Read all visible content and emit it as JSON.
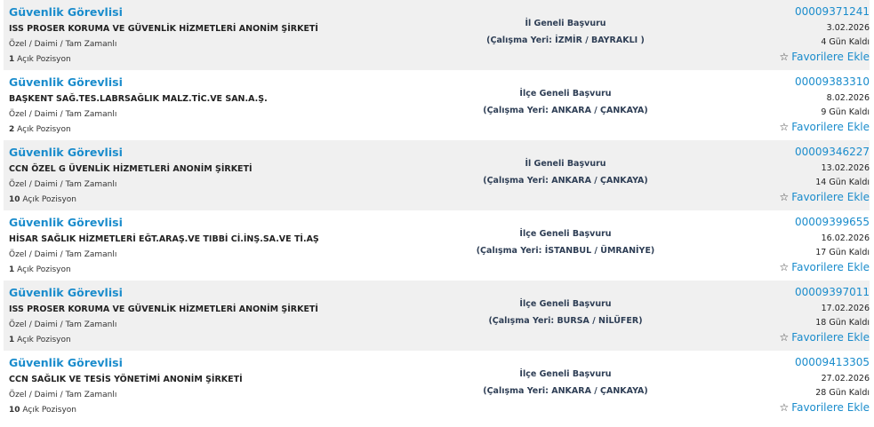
{
  "colors": {
    "link": "#1a8ccc",
    "row_alt": "#f0f0f0"
  },
  "star_icon": "star-outline-icon",
  "jobs": [
    {
      "title": "Güvenlik Görevlisi",
      "company": "ISS PROSER KORUMA VE GÜVENLİK HİZMETLERİ ANONİM ŞİRKETİ",
      "type": "Özel / Daimi / Tam Zamanlı",
      "positions": "1",
      "positions_label": "Açık Pozisyon",
      "scope": "İl Geneli Başvuru",
      "location": "(Çalışma Yeri: İZMİR / BAYRAKLI )",
      "id": "00009371241",
      "date": "3.02.2026",
      "remaining": "4 Gün Kaldı",
      "favorite": "Favorilere Ekle"
    },
    {
      "title": "Güvenlik Görevlisi",
      "company": "BAŞKENT SAĞ.TES.LABRSAĞLIK MALZ.TİC.VE SAN.A.Ş.",
      "type": "Özel / Daimi / Tam Zamanlı",
      "positions": "2",
      "positions_label": "Açık Pozisyon",
      "scope": "İlçe Geneli Başvuru",
      "location": "(Çalışma Yeri: ANKARA / ÇANKAYA)",
      "id": "00009383310",
      "date": "8.02.2026",
      "remaining": "9 Gün Kaldı",
      "favorite": "Favorilere Ekle"
    },
    {
      "title": "Güvenlik Görevlisi",
      "company": "CCN ÖZEL G ÜVENLİK HİZMETLERİ ANONİM ŞİRKETİ",
      "type": "Özel / Daimi / Tam Zamanlı",
      "positions": "10",
      "positions_label": "Açık Pozisyon",
      "scope": "İl Geneli Başvuru",
      "location": "(Çalışma Yeri: ANKARA / ÇANKAYA)",
      "id": "00009346227",
      "date": "13.02.2026",
      "remaining": "14 Gün Kaldı",
      "favorite": "Favorilere Ekle"
    },
    {
      "title": "Güvenlik Görevlisi",
      "company": "HİSAR SAĞLIK HİZMETLERİ EĞT.ARAŞ.VE TIBBİ Cİ.İNŞ.SA.VE Tİ.AŞ",
      "type": "Özel / Daimi / Tam Zamanlı",
      "positions": "1",
      "positions_label": "Açık Pozisyon",
      "scope": "İlçe Geneli Başvuru",
      "location": "(Çalışma Yeri: İSTANBUL / ÜMRANİYE)",
      "id": "00009399655",
      "date": "16.02.2026",
      "remaining": "17 Gün Kaldı",
      "favorite": "Favorilere Ekle"
    },
    {
      "title": "Güvenlik Görevlisi",
      "company": "ISS PROSER KORUMA VE GÜVENLİK HİZMETLERİ ANONİM ŞİRKETİ",
      "type": "Özel / Daimi / Tam Zamanlı",
      "positions": "1",
      "positions_label": "Açık Pozisyon",
      "scope": "İlçe Geneli Başvuru",
      "location": "(Çalışma Yeri: BURSA / NİLÜFER)",
      "id": "00009397011",
      "date": "17.02.2026",
      "remaining": "18 Gün Kaldı",
      "favorite": "Favorilere Ekle"
    },
    {
      "title": "Güvenlik Görevlisi",
      "company": "CCN SAĞLIK VE TESİS YÖNETİMİ ANONİM ŞİRKETİ",
      "type": "Özel / Daimi / Tam Zamanlı",
      "positions": "10",
      "positions_label": "Açık Pozisyon",
      "scope": "İlçe Geneli Başvuru",
      "location": "(Çalışma Yeri: ANKARA / ÇANKAYA)",
      "id": "00009413305",
      "date": "27.02.2026",
      "remaining": "28 Gün Kaldı",
      "favorite": "Favorilere Ekle"
    }
  ]
}
